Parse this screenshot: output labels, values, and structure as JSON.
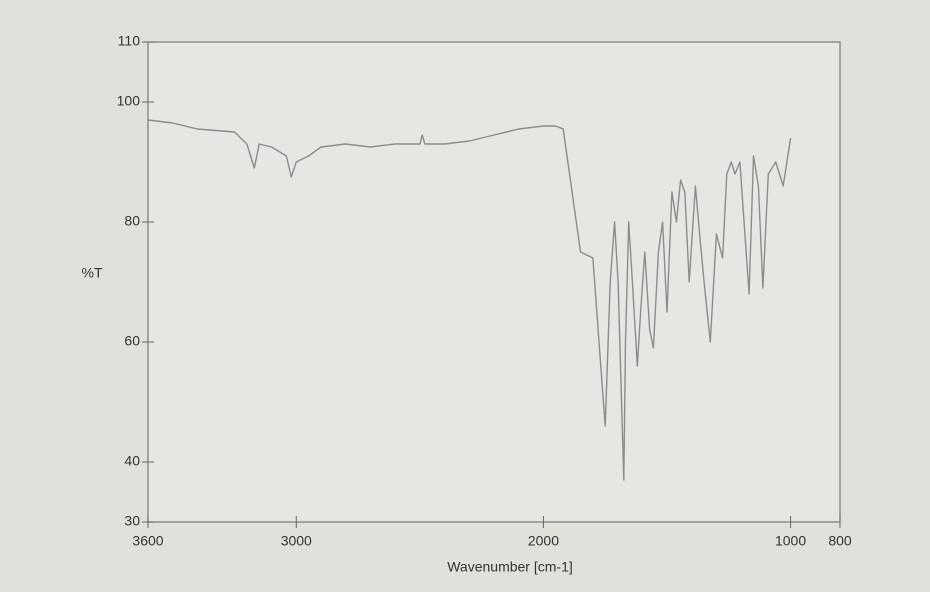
{
  "chart_data": {
    "type": "line",
    "ylabel": "%T",
    "xlabel": "Wavenumber [cm-1]",
    "xlim": [
      3600,
      800
    ],
    "ylim": [
      30,
      110
    ],
    "xticks": [
      3600,
      3000,
      2000,
      1000,
      800
    ],
    "yticks": [
      30,
      40,
      60,
      80,
      100,
      110
    ],
    "series": [
      {
        "color": "#8c8c8c",
        "x": [
          3600,
          3500,
          3400,
          3250,
          3200,
          3170,
          3150,
          3100,
          3040,
          3020,
          3000,
          2950,
          2900,
          2800,
          2700,
          2600,
          2500,
          2490,
          2480,
          2400,
          2300,
          2200,
          2100,
          2000,
          1950,
          1920,
          1850,
          1800,
          1775,
          1750,
          1730,
          1712,
          1698,
          1675,
          1668,
          1655,
          1640,
          1620,
          1605,
          1590,
          1570,
          1555,
          1535,
          1518,
          1500,
          1480,
          1462,
          1445,
          1428,
          1410,
          1385,
          1368,
          1350,
          1325,
          1300,
          1275,
          1258,
          1240,
          1225,
          1205,
          1185,
          1168,
          1150,
          1130,
          1112,
          1090,
          1060,
          1030,
          1000
        ],
        "values": [
          97,
          96.5,
          95.5,
          95,
          93,
          89,
          93,
          92.5,
          91,
          87.5,
          90,
          91,
          92.5,
          93,
          92.5,
          93,
          93,
          94.5,
          93,
          93,
          93.5,
          94.5,
          95.5,
          96,
          96,
          95.5,
          75,
          74,
          60,
          46,
          70,
          80,
          70,
          37,
          60,
          80,
          70,
          56,
          66,
          75,
          62,
          59,
          75,
          80,
          65,
          85,
          80,
          87,
          85,
          70,
          86,
          78,
          70,
          60,
          78,
          74,
          88,
          90,
          88,
          90,
          78,
          68,
          91,
          86,
          69,
          88,
          90,
          86,
          94
        ]
      }
    ]
  }
}
